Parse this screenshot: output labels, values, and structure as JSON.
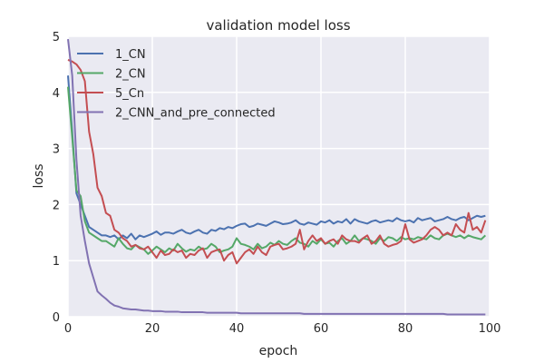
{
  "chart_data": {
    "type": "line",
    "title": "validation model loss",
    "xlabel": "epoch",
    "ylabel": "loss",
    "xlim": [
      0,
      100
    ],
    "ylim": [
      0,
      5
    ],
    "xticks": [
      "0",
      "20",
      "40",
      "60",
      "80",
      "100"
    ],
    "yticks": [
      "0",
      "1",
      "2",
      "3",
      "4",
      "5"
    ],
    "grid": true,
    "legend_position": "top-left",
    "background": "#EAEAF2",
    "x": [
      0,
      1,
      2,
      3,
      4,
      5,
      6,
      7,
      8,
      9,
      10,
      11,
      12,
      13,
      14,
      15,
      16,
      17,
      18,
      19,
      20,
      21,
      22,
      23,
      24,
      25,
      26,
      27,
      28,
      29,
      30,
      31,
      32,
      33,
      34,
      35,
      36,
      37,
      38,
      39,
      40,
      41,
      42,
      43,
      44,
      45,
      46,
      47,
      48,
      49,
      50,
      51,
      52,
      53,
      54,
      55,
      56,
      57,
      58,
      59,
      60,
      61,
      62,
      63,
      64,
      65,
      66,
      67,
      68,
      69,
      70,
      71,
      72,
      73,
      74,
      75,
      76,
      77,
      78,
      79,
      80,
      81,
      82,
      83,
      84,
      85,
      86,
      87,
      88,
      89,
      90,
      91,
      92,
      93,
      94,
      95,
      96,
      97,
      98,
      99
    ],
    "series": [
      {
        "name": "1_CN",
        "color": "#4C72B0",
        "values": [
          4.3,
          3.3,
          2.2,
          2.0,
          1.8,
          1.6,
          1.55,
          1.5,
          1.45,
          1.45,
          1.42,
          1.45,
          1.38,
          1.45,
          1.4,
          1.48,
          1.38,
          1.45,
          1.42,
          1.45,
          1.48,
          1.52,
          1.46,
          1.5,
          1.5,
          1.48,
          1.52,
          1.55,
          1.5,
          1.48,
          1.52,
          1.55,
          1.5,
          1.48,
          1.55,
          1.53,
          1.58,
          1.56,
          1.6,
          1.58,
          1.62,
          1.65,
          1.66,
          1.6,
          1.62,
          1.66,
          1.64,
          1.62,
          1.66,
          1.7,
          1.68,
          1.65,
          1.66,
          1.68,
          1.72,
          1.66,
          1.64,
          1.68,
          1.66,
          1.64,
          1.7,
          1.68,
          1.72,
          1.66,
          1.7,
          1.68,
          1.74,
          1.66,
          1.74,
          1.7,
          1.68,
          1.66,
          1.7,
          1.72,
          1.68,
          1.7,
          1.72,
          1.7,
          1.76,
          1.72,
          1.7,
          1.72,
          1.68,
          1.76,
          1.72,
          1.74,
          1.76,
          1.7,
          1.72,
          1.74,
          1.78,
          1.74,
          1.72,
          1.76,
          1.78,
          1.72,
          1.76,
          1.8,
          1.78,
          1.8
        ]
      },
      {
        "name": "2_CN",
        "color": "#55A868",
        "values": [
          4.1,
          3.2,
          2.25,
          2.15,
          1.7,
          1.5,
          1.45,
          1.4,
          1.35,
          1.35,
          1.3,
          1.25,
          1.4,
          1.3,
          1.22,
          1.2,
          1.28,
          1.24,
          1.2,
          1.12,
          1.18,
          1.25,
          1.2,
          1.15,
          1.22,
          1.18,
          1.3,
          1.22,
          1.16,
          1.2,
          1.18,
          1.25,
          1.2,
          1.22,
          1.3,
          1.25,
          1.15,
          1.18,
          1.2,
          1.25,
          1.4,
          1.3,
          1.28,
          1.25,
          1.2,
          1.3,
          1.22,
          1.25,
          1.32,
          1.28,
          1.35,
          1.3,
          1.28,
          1.35,
          1.4,
          1.32,
          1.3,
          1.25,
          1.35,
          1.3,
          1.38,
          1.3,
          1.32,
          1.25,
          1.35,
          1.4,
          1.3,
          1.35,
          1.45,
          1.35,
          1.4,
          1.38,
          1.35,
          1.3,
          1.4,
          1.35,
          1.42,
          1.4,
          1.35,
          1.42,
          1.38,
          1.4,
          1.38,
          1.42,
          1.4,
          1.38,
          1.45,
          1.4,
          1.38,
          1.45,
          1.48,
          1.45,
          1.42,
          1.45,
          1.4,
          1.45,
          1.42,
          1.4,
          1.38,
          1.45
        ]
      },
      {
        "name": "5_Cn",
        "color": "#C44E52",
        "values": [
          4.58,
          4.55,
          4.5,
          4.4,
          4.2,
          3.3,
          2.9,
          2.3,
          2.15,
          1.85,
          1.8,
          1.55,
          1.5,
          1.4,
          1.35,
          1.25,
          1.28,
          1.22,
          1.2,
          1.25,
          1.15,
          1.05,
          1.18,
          1.1,
          1.12,
          1.2,
          1.15,
          1.18,
          1.05,
          1.12,
          1.1,
          1.18,
          1.22,
          1.05,
          1.15,
          1.18,
          1.2,
          1.0,
          1.1,
          1.15,
          0.95,
          1.05,
          1.15,
          1.2,
          1.12,
          1.25,
          1.15,
          1.1,
          1.25,
          1.28,
          1.3,
          1.2,
          1.22,
          1.25,
          1.3,
          1.55,
          1.2,
          1.35,
          1.45,
          1.35,
          1.4,
          1.3,
          1.35,
          1.38,
          1.3,
          1.45,
          1.38,
          1.35,
          1.35,
          1.32,
          1.4,
          1.45,
          1.3,
          1.35,
          1.45,
          1.3,
          1.25,
          1.28,
          1.3,
          1.35,
          1.65,
          1.38,
          1.32,
          1.35,
          1.38,
          1.45,
          1.55,
          1.6,
          1.55,
          1.45,
          1.5,
          1.45,
          1.65,
          1.55,
          1.5,
          1.85,
          1.55,
          1.6,
          1.5,
          1.72
        ]
      },
      {
        "name": "2_CNN_and_pre_connected",
        "color": "#8172B2",
        "values": [
          4.95,
          4.3,
          2.8,
          1.8,
          1.35,
          0.95,
          0.7,
          0.45,
          0.38,
          0.32,
          0.25,
          0.2,
          0.18,
          0.15,
          0.14,
          0.13,
          0.13,
          0.12,
          0.11,
          0.11,
          0.1,
          0.1,
          0.1,
          0.09,
          0.09,
          0.09,
          0.09,
          0.08,
          0.08,
          0.08,
          0.08,
          0.08,
          0.08,
          0.07,
          0.07,
          0.07,
          0.07,
          0.07,
          0.07,
          0.07,
          0.07,
          0.06,
          0.06,
          0.06,
          0.06,
          0.06,
          0.06,
          0.06,
          0.06,
          0.06,
          0.06,
          0.06,
          0.06,
          0.06,
          0.06,
          0.06,
          0.05,
          0.05,
          0.05,
          0.05,
          0.05,
          0.05,
          0.05,
          0.05,
          0.05,
          0.05,
          0.05,
          0.05,
          0.05,
          0.05,
          0.05,
          0.05,
          0.05,
          0.05,
          0.05,
          0.05,
          0.05,
          0.05,
          0.05,
          0.05,
          0.05,
          0.05,
          0.05,
          0.05,
          0.05,
          0.05,
          0.05,
          0.05,
          0.05,
          0.05,
          0.04,
          0.04,
          0.04,
          0.04,
          0.04,
          0.04,
          0.04,
          0.04,
          0.04,
          0.04
        ]
      }
    ]
  }
}
